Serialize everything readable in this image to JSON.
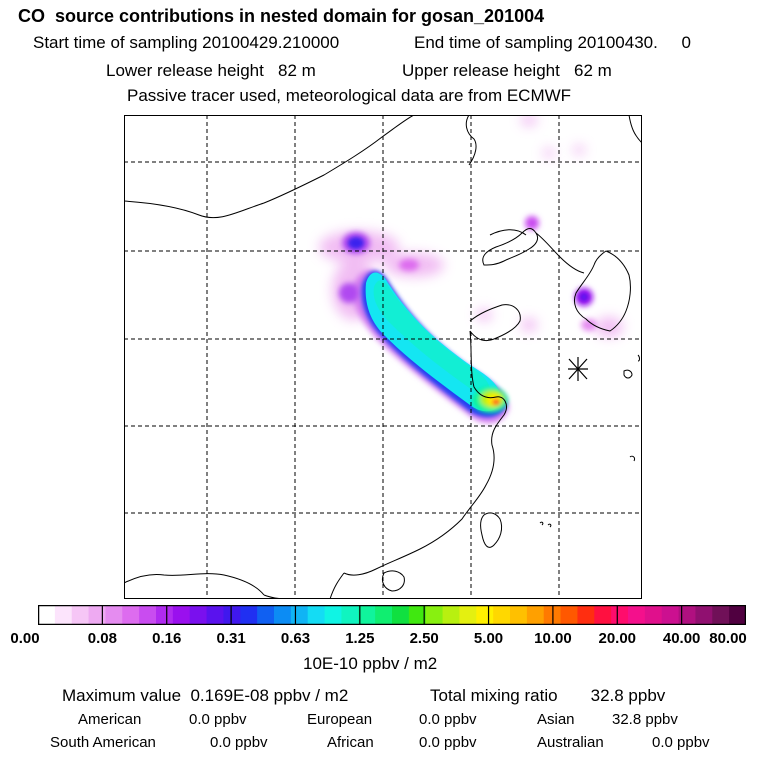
{
  "header": {
    "title": "CO  source contributions in nested domain for gosan_201004",
    "start_sampling": "Start time of sampling 20100429.210000",
    "end_sampling": "End time of sampling 20100430.     0",
    "lower_release": "Lower release height   82 m",
    "upper_release": "Upper release height   62 m",
    "tracer_note": "Passive tracer used, meteorological data are from ECMWF"
  },
  "colorbar": {
    "ticks": [
      "0.00",
      "0.08",
      "0.16",
      "0.31",
      "0.63",
      "1.25",
      "2.50",
      "5.00",
      "10.00",
      "20.00",
      "40.00",
      "80.00"
    ],
    "colors": [
      "#ffffff",
      "#fce4fc",
      "#f6c6f6",
      "#eeaaf2",
      "#e58cf0",
      "#dd6cef",
      "#c94cf0",
      "#b02af0",
      "#9a10ee",
      "#7a10ee",
      "#5a12ee",
      "#4018ee",
      "#2030f2",
      "#1060f2",
      "#0c8cf4",
      "#10b4f4",
      "#14dcf4",
      "#10f4e4",
      "#10f4c0",
      "#10f49c",
      "#10ee70",
      "#10e040",
      "#40e810",
      "#88f010",
      "#b8f010",
      "#e4f010",
      "#fff000",
      "#ffd800",
      "#ffc000",
      "#ffa000",
      "#ff7a00",
      "#ff5800",
      "#ff2e10",
      "#ff1040",
      "#ff0c6c",
      "#f4108c",
      "#e0108c",
      "#cc1090",
      "#b01080",
      "#901070",
      "#701058",
      "#500040"
    ],
    "units": "10E-10 ppbv / m2"
  },
  "summary": {
    "max_value": "Maximum value  0.169E-08 ppbv / m2",
    "total_mixing": "Total mixing ratio       32.8 ppbv",
    "regions": [
      {
        "name": "American",
        "value": "0.0 ppbv"
      },
      {
        "name": "European",
        "value": "0.0 ppbv"
      },
      {
        "name": "Asian",
        "value": "32.8 ppbv"
      },
      {
        "name": "South American",
        "value": "0.0 ppbv"
      },
      {
        "name": "African",
        "value": "0.0 ppbv"
      },
      {
        "name": "Australian",
        "value": "0.0 ppbv"
      }
    ]
  },
  "map": {
    "receptor_marker": "gosan-receptor-marker",
    "colors": {
      "light_magenta": "#f0b6f2",
      "magenta": "#d37cf0",
      "purple": "#b04af0",
      "blue": "#3030f2",
      "cyan": "#14e6f2",
      "yellow": "#f0f010",
      "red": "#ff3020"
    }
  }
}
